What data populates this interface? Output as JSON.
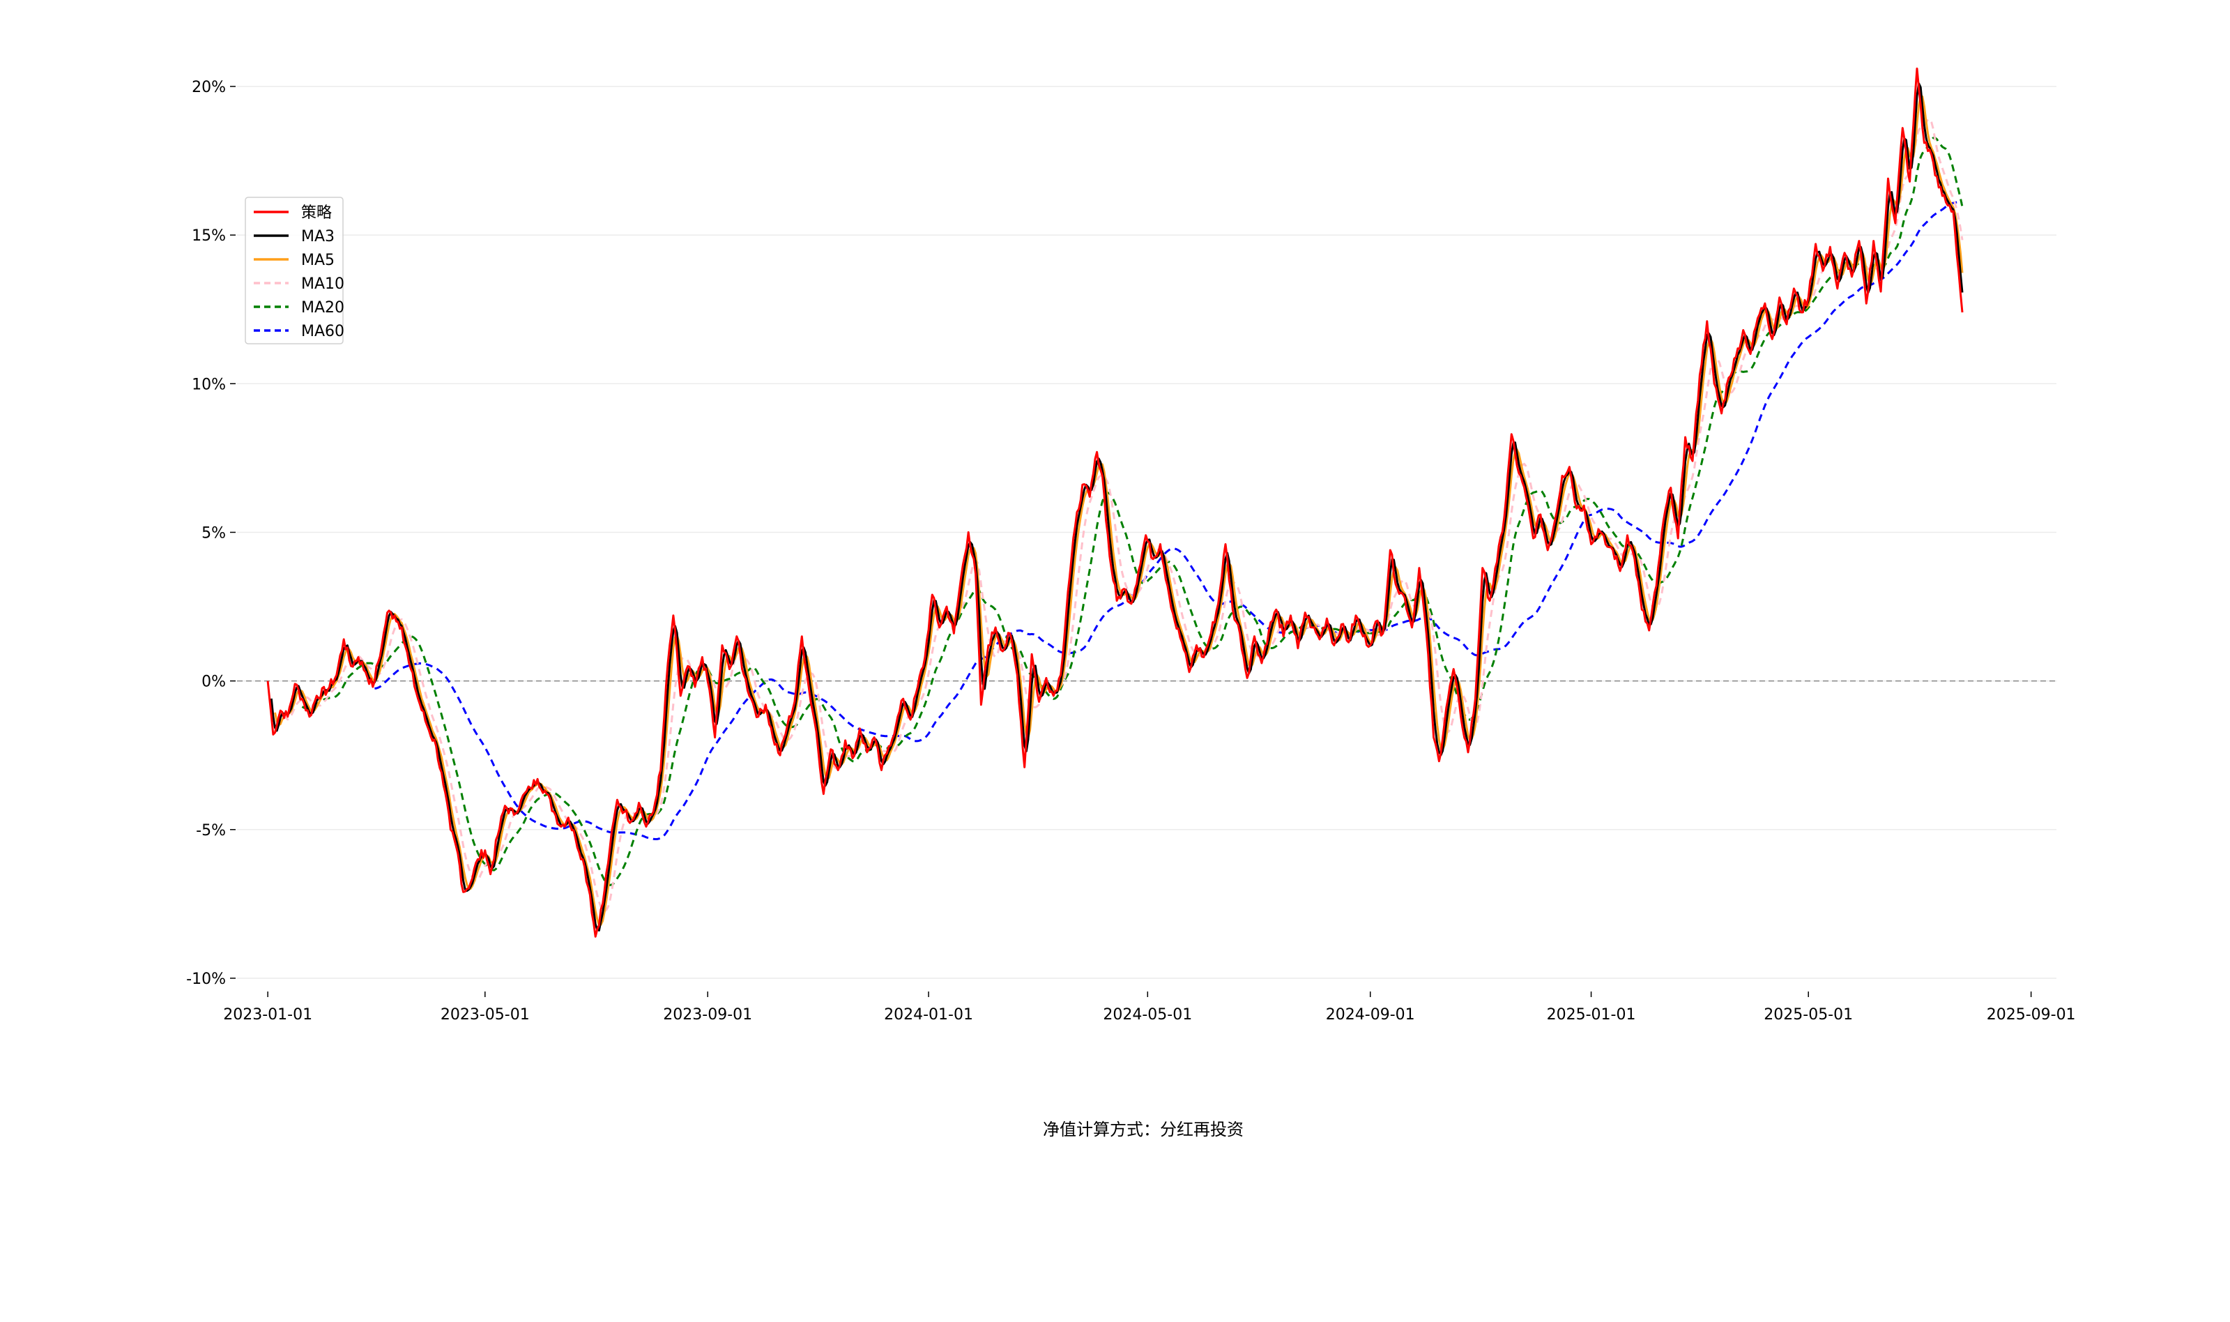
{
  "chart_data": {
    "type": "line",
    "title": "",
    "xlabel": "",
    "ylabel": "",
    "xlim": [
      "2022-12-15",
      "2025-09-15"
    ],
    "ylim": [
      -10.4,
      21.5
    ],
    "y_unit": "%",
    "grid": {
      "horizontal": true,
      "vertical": false,
      "color": "#ececec"
    },
    "zero_line": {
      "value": 0,
      "color": "#888888",
      "style": "dashed"
    },
    "legend_position": "top-left",
    "x_ticks": [
      "2023-01-01",
      "2023-05-01",
      "2023-09-01",
      "2024-01-01",
      "2024-05-01",
      "2024-09-01",
      "2025-01-01",
      "2025-05-01",
      "2025-09-01"
    ],
    "y_ticks": [
      -10,
      -5,
      0,
      5,
      10,
      15,
      20
    ],
    "y_tick_labels": [
      "-10%",
      "-5%",
      "0%",
      "5%",
      "10%",
      "15%",
      "20%"
    ],
    "legend": [
      {
        "name": "策略",
        "color": "#ff0000",
        "dash": false
      },
      {
        "name": "MA3",
        "color": "#000000",
        "dash": false
      },
      {
        "name": "MA5",
        "color": "#ff9f1a",
        "dash": false
      },
      {
        "name": "MA10",
        "color": "#ffc0cb",
        "dash": true
      },
      {
        "name": "MA20",
        "color": "#008000",
        "dash": true
      },
      {
        "name": "MA60",
        "color": "#0000ff",
        "dash": true
      }
    ],
    "anchors": [
      [
        "2023-01-01",
        0.0
      ],
      [
        "2023-01-04",
        -1.8
      ],
      [
        "2023-01-08",
        -1.0
      ],
      [
        "2023-01-12",
        -1.2
      ],
      [
        "2023-01-16",
        -0.1
      ],
      [
        "2023-01-20",
        -0.6
      ],
      [
        "2023-01-24",
        -1.2
      ],
      [
        "2023-01-28",
        -0.5
      ],
      [
        "2023-02-03",
        -0.3
      ],
      [
        "2023-02-08",
        0.2
      ],
      [
        "2023-02-12",
        1.4
      ],
      [
        "2023-02-16",
        0.5
      ],
      [
        "2023-02-20",
        0.8
      ],
      [
        "2023-02-24",
        0.3
      ],
      [
        "2023-02-28",
        -0.2
      ],
      [
        "2023-03-05",
        1.2
      ],
      [
        "2023-03-08",
        2.3
      ],
      [
        "2023-03-12",
        2.2
      ],
      [
        "2023-03-16",
        1.8
      ],
      [
        "2023-03-20",
        0.6
      ],
      [
        "2023-03-25",
        -0.6
      ],
      [
        "2023-03-30",
        -1.5
      ],
      [
        "2023-04-04",
        -2.2
      ],
      [
        "2023-04-08",
        -3.5
      ],
      [
        "2023-04-12",
        -5.0
      ],
      [
        "2023-04-16",
        -5.8
      ],
      [
        "2023-04-19",
        -7.1
      ],
      [
        "2023-04-23",
        -6.8
      ],
      [
        "2023-04-27",
        -6.0
      ],
      [
        "2023-05-01",
        -5.7
      ],
      [
        "2023-05-04",
        -6.5
      ],
      [
        "2023-05-08",
        -5.2
      ],
      [
        "2023-05-12",
        -4.2
      ],
      [
        "2023-05-17",
        -4.5
      ],
      [
        "2023-05-21",
        -4.0
      ],
      [
        "2023-05-26",
        -3.6
      ],
      [
        "2023-05-30",
        -3.3
      ],
      [
        "2023-06-04",
        -3.8
      ],
      [
        "2023-06-08",
        -4.4
      ],
      [
        "2023-06-12",
        -4.9
      ],
      [
        "2023-06-16",
        -4.6
      ],
      [
        "2023-06-20",
        -5.3
      ],
      [
        "2023-06-24",
        -6.0
      ],
      [
        "2023-06-28",
        -7.2
      ],
      [
        "2023-07-01",
        -8.6
      ],
      [
        "2023-07-05",
        -7.5
      ],
      [
        "2023-07-09",
        -5.6
      ],
      [
        "2023-07-13",
        -4.0
      ],
      [
        "2023-07-17",
        -4.4
      ],
      [
        "2023-07-21",
        -4.7
      ],
      [
        "2023-07-25",
        -4.1
      ],
      [
        "2023-07-29",
        -4.9
      ],
      [
        "2023-08-02",
        -4.4
      ],
      [
        "2023-08-06",
        -3.0
      ],
      [
        "2023-08-10",
        0.6
      ],
      [
        "2023-08-13",
        2.2
      ],
      [
        "2023-08-17",
        -0.5
      ],
      [
        "2023-08-21",
        0.5
      ],
      [
        "2023-08-25",
        -0.2
      ],
      [
        "2023-08-29",
        0.8
      ],
      [
        "2023-09-02",
        -0.3
      ],
      [
        "2023-09-05",
        -1.9
      ],
      [
        "2023-09-09",
        1.2
      ],
      [
        "2023-09-13",
        0.4
      ],
      [
        "2023-09-17",
        1.5
      ],
      [
        "2023-09-21",
        0.2
      ],
      [
        "2023-09-25",
        -0.6
      ],
      [
        "2023-09-29",
        -1.2
      ],
      [
        "2023-10-03",
        -0.8
      ],
      [
        "2023-10-07",
        -1.9
      ],
      [
        "2023-10-11",
        -2.5
      ],
      [
        "2023-10-15",
        -1.5
      ],
      [
        "2023-10-19",
        -0.7
      ],
      [
        "2023-10-23",
        1.5
      ],
      [
        "2023-10-27",
        -0.3
      ],
      [
        "2023-10-31",
        -1.7
      ],
      [
        "2023-11-04",
        -3.8
      ],
      [
        "2023-11-08",
        -2.3
      ],
      [
        "2023-11-12",
        -3.0
      ],
      [
        "2023-11-16",
        -2.0
      ],
      [
        "2023-11-20",
        -2.6
      ],
      [
        "2023-11-24",
        -1.6
      ],
      [
        "2023-11-28",
        -2.4
      ],
      [
        "2023-12-02",
        -1.9
      ],
      [
        "2023-12-06",
        -3.0
      ],
      [
        "2023-12-10",
        -2.2
      ],
      [
        "2023-12-14",
        -1.5
      ],
      [
        "2023-12-18",
        -0.6
      ],
      [
        "2023-12-22",
        -1.3
      ],
      [
        "2023-12-26",
        -0.2
      ],
      [
        "2023-12-30",
        0.8
      ],
      [
        "2024-01-03",
        2.9
      ],
      [
        "2024-01-07",
        1.8
      ],
      [
        "2024-01-11",
        2.5
      ],
      [
        "2024-01-15",
        1.6
      ],
      [
        "2024-01-19",
        3.5
      ],
      [
        "2024-01-23",
        5.0
      ],
      [
        "2024-01-27",
        3.6
      ],
      [
        "2024-01-30",
        -0.8
      ],
      [
        "2024-02-03",
        1.2
      ],
      [
        "2024-02-07",
        1.8
      ],
      [
        "2024-02-11",
        1.0
      ],
      [
        "2024-02-15",
        1.6
      ],
      [
        "2024-02-19",
        0.2
      ],
      [
        "2024-02-23",
        -2.9
      ],
      [
        "2024-02-27",
        0.9
      ],
      [
        "2024-03-02",
        -0.7
      ],
      [
        "2024-03-06",
        0.1
      ],
      [
        "2024-03-10",
        -0.5
      ],
      [
        "2024-03-14",
        0.2
      ],
      [
        "2024-03-18",
        3.0
      ],
      [
        "2024-03-22",
        5.2
      ],
      [
        "2024-03-26",
        6.6
      ],
      [
        "2024-03-30",
        6.2
      ],
      [
        "2024-04-03",
        7.7
      ],
      [
        "2024-04-06",
        6.9
      ],
      [
        "2024-04-10",
        4.2
      ],
      [
        "2024-04-14",
        2.7
      ],
      [
        "2024-04-18",
        3.1
      ],
      [
        "2024-04-22",
        2.6
      ],
      [
        "2024-04-26",
        3.7
      ],
      [
        "2024-04-30",
        4.9
      ],
      [
        "2024-05-04",
        4.1
      ],
      [
        "2024-05-08",
        4.6
      ],
      [
        "2024-05-12",
        3.2
      ],
      [
        "2024-05-16",
        2.0
      ],
      [
        "2024-05-20",
        1.3
      ],
      [
        "2024-05-24",
        0.3
      ],
      [
        "2024-05-28",
        1.2
      ],
      [
        "2024-06-01",
        0.8
      ],
      [
        "2024-06-05",
        1.6
      ],
      [
        "2024-06-09",
        2.6
      ],
      [
        "2024-06-13",
        4.6
      ],
      [
        "2024-06-17",
        2.4
      ],
      [
        "2024-06-21",
        1.6
      ],
      [
        "2024-06-25",
        0.1
      ],
      [
        "2024-06-29",
        1.5
      ],
      [
        "2024-07-03",
        0.6
      ],
      [
        "2024-07-07",
        1.7
      ],
      [
        "2024-07-11",
        2.4
      ],
      [
        "2024-07-15",
        1.5
      ],
      [
        "2024-07-19",
        2.2
      ],
      [
        "2024-07-23",
        1.1
      ],
      [
        "2024-07-27",
        2.3
      ],
      [
        "2024-07-31",
        1.8
      ],
      [
        "2024-08-04",
        1.4
      ],
      [
        "2024-08-08",
        2.1
      ],
      [
        "2024-08-12",
        1.2
      ],
      [
        "2024-08-16",
        1.9
      ],
      [
        "2024-08-20",
        1.3
      ],
      [
        "2024-08-24",
        2.2
      ],
      [
        "2024-08-28",
        1.5
      ],
      [
        "2024-09-01",
        1.2
      ],
      [
        "2024-09-04",
        2.0
      ],
      [
        "2024-09-08",
        1.6
      ],
      [
        "2024-09-12",
        4.4
      ],
      [
        "2024-09-16",
        3.1
      ],
      [
        "2024-09-20",
        2.8
      ],
      [
        "2024-09-24",
        1.8
      ],
      [
        "2024-09-28",
        3.8
      ],
      [
        "2024-10-02",
        1.6
      ],
      [
        "2024-10-06",
        -1.9
      ],
      [
        "2024-10-09",
        -2.7
      ],
      [
        "2024-10-13",
        -0.9
      ],
      [
        "2024-10-17",
        0.4
      ],
      [
        "2024-10-21",
        -1.2
      ],
      [
        "2024-10-25",
        -2.4
      ],
      [
        "2024-10-29",
        -0.6
      ],
      [
        "2024-11-02",
        3.8
      ],
      [
        "2024-11-06",
        2.7
      ],
      [
        "2024-11-10",
        4.0
      ],
      [
        "2024-11-14",
        5.5
      ],
      [
        "2024-11-18",
        8.3
      ],
      [
        "2024-11-22",
        7.0
      ],
      [
        "2024-11-26",
        6.2
      ],
      [
        "2024-11-30",
        4.8
      ],
      [
        "2024-12-04",
        5.6
      ],
      [
        "2024-12-08",
        4.4
      ],
      [
        "2024-12-12",
        5.4
      ],
      [
        "2024-12-16",
        6.9
      ],
      [
        "2024-12-20",
        7.2
      ],
      [
        "2024-12-24",
        5.8
      ],
      [
        "2024-12-28",
        5.9
      ],
      [
        "2025-01-01",
        4.6
      ],
      [
        "2025-01-05",
        5.1
      ],
      [
        "2025-01-09",
        4.6
      ],
      [
        "2025-01-13",
        4.4
      ],
      [
        "2025-01-17",
        3.7
      ],
      [
        "2025-01-21",
        4.9
      ],
      [
        "2025-01-25",
        4.1
      ],
      [
        "2025-01-29",
        2.4
      ],
      [
        "2025-02-02",
        1.7
      ],
      [
        "2025-02-06",
        3.2
      ],
      [
        "2025-02-10",
        5.4
      ],
      [
        "2025-02-14",
        6.5
      ],
      [
        "2025-02-18",
        4.8
      ],
      [
        "2025-02-22",
        8.2
      ],
      [
        "2025-02-26",
        7.4
      ],
      [
        "2025-03-02",
        10.3
      ],
      [
        "2025-03-06",
        12.1
      ],
      [
        "2025-03-10",
        10.0
      ],
      [
        "2025-03-14",
        9.0
      ],
      [
        "2025-03-18",
        10.2
      ],
      [
        "2025-03-22",
        10.9
      ],
      [
        "2025-03-26",
        11.8
      ],
      [
        "2025-03-30",
        11.0
      ],
      [
        "2025-04-03",
        12.2
      ],
      [
        "2025-04-07",
        12.7
      ],
      [
        "2025-04-11",
        11.5
      ],
      [
        "2025-04-15",
        12.9
      ],
      [
        "2025-04-19",
        12.0
      ],
      [
        "2025-04-23",
        13.2
      ],
      [
        "2025-04-27",
        12.4
      ],
      [
        "2025-05-01",
        12.9
      ],
      [
        "2025-05-05",
        14.7
      ],
      [
        "2025-05-09",
        13.8
      ],
      [
        "2025-05-13",
        14.6
      ],
      [
        "2025-05-17",
        13.2
      ],
      [
        "2025-05-21",
        14.4
      ],
      [
        "2025-05-25",
        13.6
      ],
      [
        "2025-05-29",
        14.8
      ],
      [
        "2025-06-02",
        12.7
      ],
      [
        "2025-06-06",
        14.8
      ],
      [
        "2025-06-10",
        13.1
      ],
      [
        "2025-06-14",
        16.9
      ],
      [
        "2025-06-18",
        15.4
      ],
      [
        "2025-06-22",
        18.6
      ],
      [
        "2025-06-26",
        16.8
      ],
      [
        "2025-06-30",
        20.6
      ],
      [
        "2025-07-04",
        18.1
      ],
      [
        "2025-07-08",
        17.7
      ],
      [
        "2025-07-12",
        16.6
      ],
      [
        "2025-07-16",
        16.1
      ],
      [
        "2025-07-20",
        15.8
      ],
      [
        "2025-07-25",
        12.4
      ]
    ],
    "series": [
      {
        "name": "策略",
        "color": "#ff0000",
        "width": 3,
        "dash": "",
        "ma": 1
      },
      {
        "name": "MA3",
        "color": "#000000",
        "width": 3,
        "dash": "",
        "ma": 3
      },
      {
        "name": "MA5",
        "color": "#ff9f1a",
        "width": 3,
        "dash": "",
        "ma": 5
      },
      {
        "name": "MA10",
        "color": "#ffc0cb",
        "width": 3,
        "dash": "10,7",
        "ma": 10
      },
      {
        "name": "MA20",
        "color": "#008000",
        "width": 3,
        "dash": "10,7",
        "ma": 20
      },
      {
        "name": "MA60",
        "color": "#0000ff",
        "width": 3,
        "dash": "10,7",
        "ma": 60
      }
    ]
  },
  "footnote": "净值计算方式：分红再投资"
}
